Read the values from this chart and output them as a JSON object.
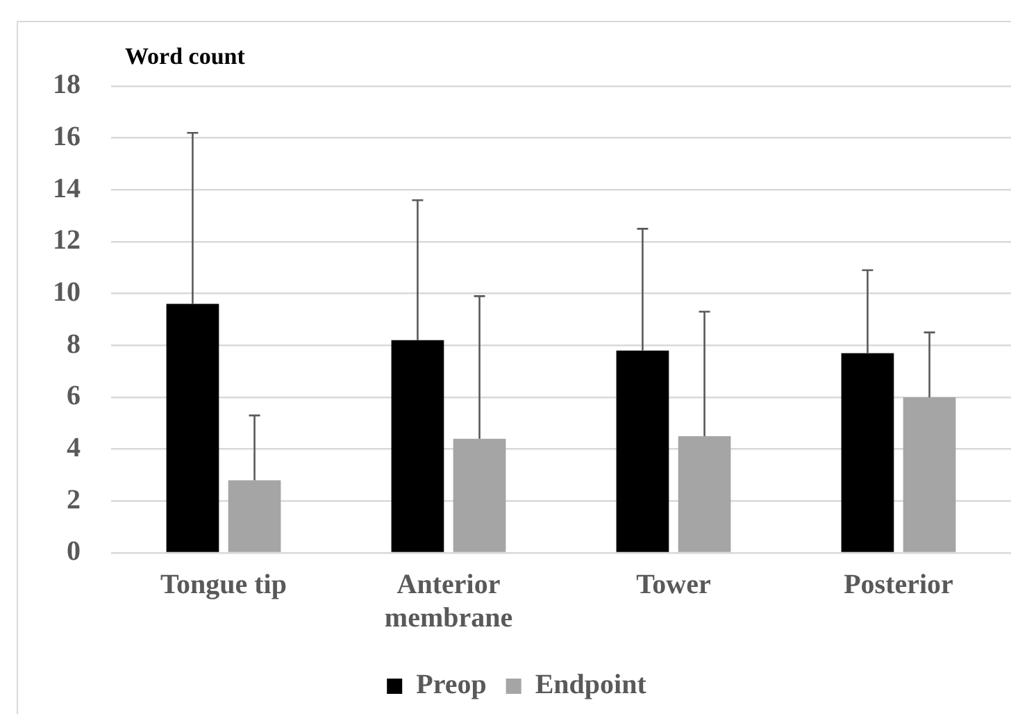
{
  "chart_data": {
    "type": "bar",
    "ylabel": "Word count",
    "categories": [
      "Tongue tip",
      "Anterior membrane",
      "Tower",
      "Posterior"
    ],
    "series": [
      {
        "name": "Preop",
        "color": "#000000",
        "values": [
          9.6,
          8.2,
          7.8,
          7.7
        ],
        "errors": [
          [
            9.6,
            16.2
          ],
          [
            8.2,
            13.6
          ],
          [
            7.8,
            12.5
          ],
          [
            7.7,
            10.9
          ]
        ]
      },
      {
        "name": "Endpoint",
        "color": "#a5a5a5",
        "values": [
          2.8,
          4.4,
          4.5,
          6.0
        ],
        "errors": [
          [
            2.8,
            5.3
          ],
          [
            4.4,
            9.9
          ],
          [
            4.5,
            9.3
          ],
          [
            6.0,
            8.5
          ]
        ]
      }
    ],
    "ylim": [
      0,
      18
    ],
    "yticks": [
      0,
      2,
      4,
      6,
      8,
      10,
      12,
      14,
      16,
      18
    ],
    "grid": "y",
    "legend": "bottom"
  }
}
